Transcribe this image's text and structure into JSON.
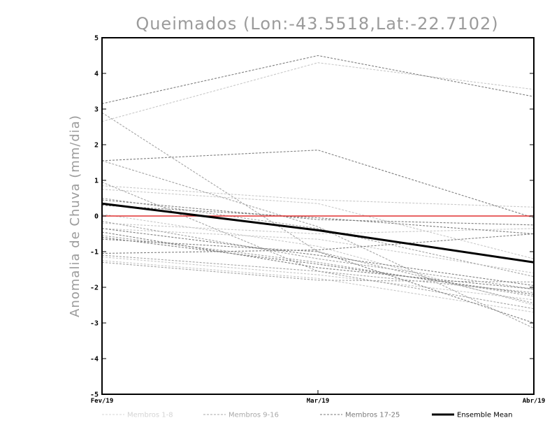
{
  "chart_data": {
    "type": "line",
    "title": "Queimados (Lon:-43.5518,Lat:-22.7102)",
    "xlabel": "",
    "ylabel": "Anomalia de Chuva (mm/dia)",
    "categories": [
      "Fev/19",
      "Mar/19",
      "Abr/19"
    ],
    "ylim": [
      -5,
      5
    ],
    "yticks": [
      -5,
      -4,
      -3,
      -2,
      -1,
      0,
      1,
      2,
      3,
      4,
      5
    ],
    "ytick_labels": [
      "-5",
      "-4",
      "-3",
      "-2",
      "-1",
      "0",
      "1",
      "2",
      "3",
      "4",
      "5"
    ],
    "zero_line_color": "#e03030",
    "series": [
      {
        "name": "Membro 1",
        "group": "Membros 1-8",
        "values": [
          2.65,
          4.3,
          3.55
        ]
      },
      {
        "name": "Membro 2",
        "group": "Membros 1-8",
        "values": [
          0.85,
          0.45,
          0.25
        ]
      },
      {
        "name": "Membro 3",
        "group": "Membros 1-8",
        "values": [
          0.75,
          0.35,
          -1.2
        ]
      },
      {
        "name": "Membro 4",
        "group": "Membros 1-8",
        "values": [
          -0.2,
          -0.5,
          -0.35
        ]
      },
      {
        "name": "Membro 5",
        "group": "Membros 1-8",
        "values": [
          -0.35,
          -0.65,
          -1.6
        ]
      },
      {
        "name": "Membro 6",
        "group": "Membros 1-8",
        "values": [
          -1.15,
          -1.65,
          -2.35
        ]
      },
      {
        "name": "Membro 7",
        "group": "Membros 1-8",
        "values": [
          -1.25,
          -1.75,
          -2.7
        ]
      },
      {
        "name": "Membro 8",
        "group": "Membros 1-8",
        "values": [
          0.05,
          -0.85,
          -2.5
        ]
      },
      {
        "name": "Membro 9",
        "group": "Membros 9-16",
        "values": [
          2.9,
          -1.0,
          -2.45
        ]
      },
      {
        "name": "Membro 10",
        "group": "Membros 9-16",
        "values": [
          1.55,
          -0.3,
          -3.15
        ]
      },
      {
        "name": "Membro 11",
        "group": "Membros 9-16",
        "values": [
          0.5,
          -0.35,
          -1.7
        ]
      },
      {
        "name": "Membro 12",
        "group": "Membros 9-16",
        "values": [
          -0.15,
          -1.2,
          -2.05
        ]
      },
      {
        "name": "Membro 13",
        "group": "Membros 9-16",
        "values": [
          -0.55,
          -1.3,
          -2.25
        ]
      },
      {
        "name": "Membro 14",
        "group": "Membros 9-16",
        "values": [
          -1.1,
          -1.55,
          -2.6
        ]
      },
      {
        "name": "Membro 15",
        "group": "Membros 9-16",
        "values": [
          -1.3,
          -1.8,
          -1.85
        ]
      },
      {
        "name": "Membro 16",
        "group": "Membros 9-16",
        "values": [
          0.95,
          -1.55,
          -2.15
        ]
      },
      {
        "name": "Membro 17",
        "group": "Membros 17-25",
        "values": [
          3.15,
          4.5,
          3.35
        ]
      },
      {
        "name": "Membro 18",
        "group": "Membros 17-25",
        "values": [
          1.55,
          1.85,
          -0.05
        ]
      },
      {
        "name": "Membro 19",
        "group": "Membros 17-25",
        "values": [
          0.45,
          -0.1,
          -0.25
        ]
      },
      {
        "name": "Membro 20",
        "group": "Membros 17-25",
        "values": [
          0.3,
          -0.05,
          -0.5
        ]
      },
      {
        "name": "Membro 21",
        "group": "Membros 17-25",
        "values": [
          -0.35,
          -1.1,
          -1.95
        ]
      },
      {
        "name": "Membro 22",
        "group": "Membros 17-25",
        "values": [
          -0.6,
          -1.35,
          -2.2
        ]
      },
      {
        "name": "Membro 23",
        "group": "Membros 17-25",
        "values": [
          -1.05,
          -0.95,
          -0.5
        ]
      },
      {
        "name": "Membro 24",
        "group": "Membros 17-25",
        "values": [
          -0.65,
          -1.0,
          -3.0
        ]
      },
      {
        "name": "Membro 25",
        "group": "Membros 17-25",
        "values": [
          -0.45,
          -1.45,
          -2.05
        ]
      },
      {
        "name": "Ensemble Mean",
        "group": "Ensemble Mean",
        "values": [
          0.35,
          -0.4,
          -1.3
        ]
      }
    ],
    "legend": {
      "position": "bottom",
      "entries": [
        {
          "label": "Membros 1-8",
          "color": "#d4d4d4",
          "style": "dashed"
        },
        {
          "label": "Membros 9-16",
          "color": "#a8a8a8",
          "style": "dashed"
        },
        {
          "label": "Membros 17-25",
          "color": "#7a7a7a",
          "style": "dashed"
        },
        {
          "label": "Ensemble Mean",
          "color": "#000000",
          "style": "solid"
        }
      ]
    },
    "group_colors": {
      "Membros 1-8": "#c8c8c8",
      "Membros 9-16": "#a4a4a4",
      "Membros 17-25": "#7e7e7e",
      "Ensemble Mean": "#000000"
    }
  }
}
